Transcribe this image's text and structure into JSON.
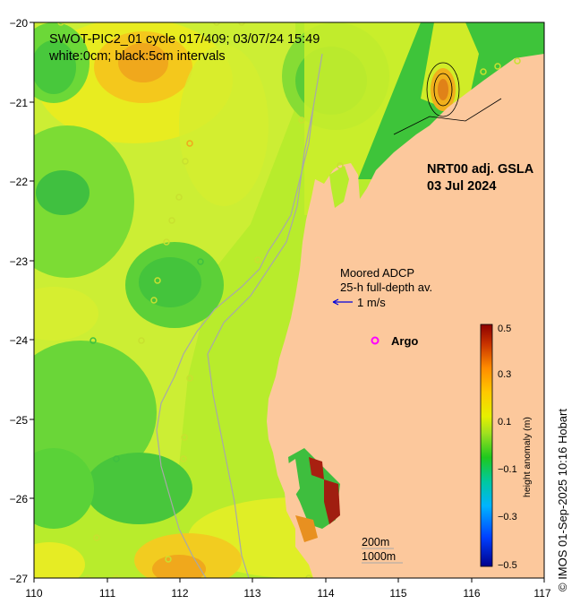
{
  "title_line1": "SWOT-PIC2_01 cycle 017/409; 03/07/24 15:49",
  "title_line2": "white:0cm; black:5cm intervals",
  "product": "NRT00 adj. GSLA",
  "product_date": "03 Jul 2024",
  "adcp_label_1": "Moored ADCP",
  "adcp_label_2": "25-h full-depth av.",
  "vector_scale": "1 m/s",
  "argo_label": "Argo",
  "bathy_200": "200m",
  "bathy_1000": "1000m",
  "credit": "© IMOS 01-Sep-2025 10:16 Hobart",
  "colorbar": {
    "label": "height anomaly (m)",
    "ticks": [
      "0.5",
      "0.3",
      "0.1",
      "−0.1",
      "−0.3",
      "−0.5"
    ]
  },
  "x_ticks": [
    "110",
    "111",
    "112",
    "113",
    "114",
    "115",
    "116",
    "117"
  ],
  "y_ticks": [
    "−20",
    "−21",
    "−22",
    "−23",
    "−24",
    "−25",
    "−26",
    "−27"
  ],
  "colors": {
    "land": "#fcc89c",
    "ocean_base": "#b8ec2c",
    "argo": "#ff00ff",
    "vector": "#0000dd"
  }
}
